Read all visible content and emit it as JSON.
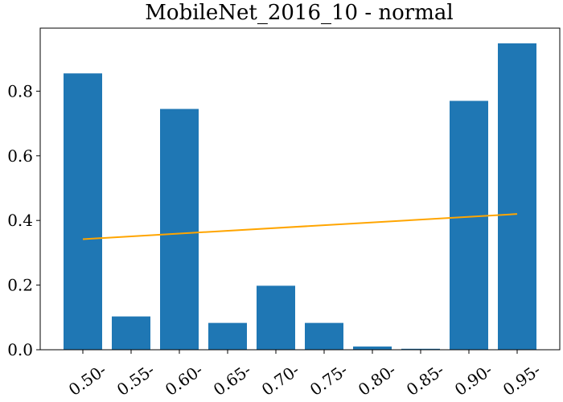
{
  "chart_data": {
    "type": "bar",
    "title": "MobileNet_2016_10 - normal",
    "xlabel": "",
    "ylabel": "",
    "categories": [
      "0.50-",
      "0.55-",
      "0.60-",
      "0.65-",
      "0.70-",
      "0.75-",
      "0.80-",
      "0.85-",
      "0.90-",
      "0.95-"
    ],
    "values": [
      0.855,
      0.103,
      0.745,
      0.083,
      0.198,
      0.083,
      0.01,
      0.003,
      0.77,
      0.948
    ],
    "ylim": [
      0,
      0.995
    ],
    "yticks": [
      0.0,
      0.2,
      0.4,
      0.6,
      0.8
    ],
    "ytick_labels": [
      "0.0",
      "0.2",
      "0.4",
      "0.6",
      "0.8"
    ],
    "series": [
      {
        "values": [
          0.855,
          0.103,
          0.745,
          0.083,
          0.198,
          0.083,
          0.01,
          0.003,
          0.77,
          0.948
        ],
        "color": "#1f77b4",
        "type": "bar"
      }
    ],
    "trend_line": {
      "start": 0.342,
      "end": 0.42,
      "color": "#ffa500"
    },
    "grid": false,
    "colors": {
      "bar": "#1f77b4",
      "trend": "#ffa500"
    }
  }
}
